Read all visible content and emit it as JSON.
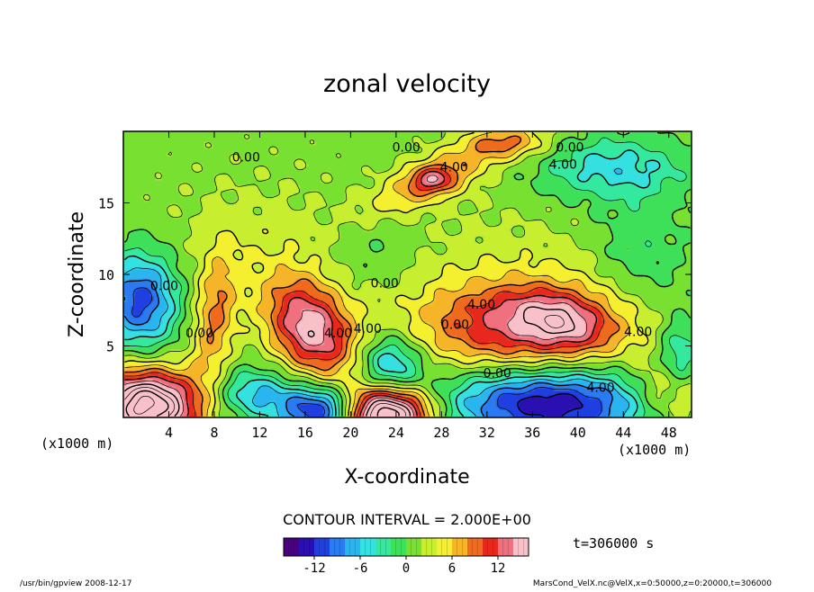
{
  "chart_data": {
    "type": "heatmap",
    "title": "zonal velocity",
    "xlabel": "X-coordinate",
    "ylabel": "Z-coordinate",
    "x_unit_label": "(x1000 m)",
    "x_unit_label_right": "(x1000 m)",
    "x_ticks": [
      4,
      8,
      12,
      16,
      20,
      24,
      28,
      32,
      36,
      40,
      44,
      48
    ],
    "y_ticks": [
      5,
      10,
      15
    ],
    "xlim": [
      0,
      50
    ],
    "ylim": [
      0,
      20
    ],
    "contour_interval_text": "CONTOUR INTERVAL = 2.000E+00",
    "time_text": "t=306000 s",
    "colorbar": {
      "range": [
        -16,
        16
      ],
      "ticks": [
        -12,
        -6,
        0,
        6,
        12
      ],
      "colors": [
        "#4a0082",
        "#2a10b0",
        "#1f3fe0",
        "#2a7af0",
        "#2ab4f0",
        "#34e0e0",
        "#35e8a0",
        "#3ee05a",
        "#78e030",
        "#c8ee30",
        "#f4f030",
        "#f6b428",
        "#f06a1e",
        "#e8281c",
        "#f07080",
        "#f8c0c8"
      ]
    },
    "contour_labels": [
      {
        "text": "0.00",
        "x": 10.8,
        "z": 17.9
      },
      {
        "text": "0.00",
        "x": 24.9,
        "z": 18.6
      },
      {
        "text": "0.00",
        "x": 39.3,
        "z": 18.6
      },
      {
        "text": "4.00",
        "x": 29.1,
        "z": 17.2
      },
      {
        "text": "4.00",
        "x": 38.7,
        "z": 17.4
      },
      {
        "text": "0.00",
        "x": 23.0,
        "z": 9.1
      },
      {
        "text": "4.00",
        "x": 31.5,
        "z": 7.6
      },
      {
        "text": "0.00",
        "x": 29.2,
        "z": 6.2
      },
      {
        "text": "0.00",
        "x": 3.6,
        "z": 8.9
      },
      {
        "text": "0.00",
        "x": 6.7,
        "z": 5.6
      },
      {
        "text": "4.00",
        "x": 18.9,
        "z": 5.6
      },
      {
        "text": "4.00",
        "x": 21.5,
        "z": 5.9
      },
      {
        "text": "0.00",
        "x": 32.9,
        "z": 2.8
      },
      {
        "text": "4.00",
        "x": 45.3,
        "z": 5.7
      },
      {
        "text": "4.00",
        "x": 42.0,
        "z": 1.8
      }
    ],
    "field_features": [
      {
        "x": 16.5,
        "z": 6.2,
        "sx": 3.0,
        "sz": 2.1,
        "rot": -35,
        "amp": 14
      },
      {
        "x": 35.5,
        "z": 6.4,
        "sx": 7.0,
        "sz": 2.3,
        "rot": 0,
        "amp": 12
      },
      {
        "x": 38.5,
        "z": 6.8,
        "sx": 2.8,
        "sz": 1.2,
        "rot": -10,
        "amp": 6
      },
      {
        "x": 27.5,
        "z": 16.8,
        "sx": 4.5,
        "sz": 1.2,
        "rot": 20,
        "amp": 7
      },
      {
        "x": 27.2,
        "z": 16.6,
        "sx": 1.3,
        "sz": 0.6,
        "rot": 0,
        "amp": 6
      },
      {
        "x": 34.0,
        "z": 19.2,
        "sx": 2.5,
        "sz": 0.8,
        "rot": 0,
        "amp": 6
      },
      {
        "x": 8.0,
        "z": 6.9,
        "sx": 1.3,
        "sz": 3.2,
        "rot": -8,
        "amp": 7
      },
      {
        "x": 2.0,
        "z": 0.8,
        "sx": 3.2,
        "sz": 1.8,
        "rot": 0,
        "amp": 22
      },
      {
        "x": 23.0,
        "z": 0.3,
        "sx": 2.8,
        "sz": 1.4,
        "rot": 0,
        "amp": 24
      },
      {
        "x": 48.5,
        "z": 1.8,
        "sx": 2.5,
        "sz": 1.6,
        "rot": 0,
        "amp": 8
      },
      {
        "x": 12.0,
        "z": 12.0,
        "sx": 6.0,
        "sz": 3.5,
        "rot": 0,
        "amp": 2
      },
      {
        "x": 33.0,
        "z": 11.5,
        "sx": 8.0,
        "sz": 3.0,
        "rot": 0,
        "amp": 1.5
      },
      {
        "x": 1.5,
        "z": 8.2,
        "sx": 2.3,
        "sz": 2.3,
        "rot": 0,
        "amp": -12
      },
      {
        "x": 37.5,
        "z": 1.0,
        "sx": 6.5,
        "sz": 1.8,
        "rot": 0,
        "amp": -15
      },
      {
        "x": 17.5,
        "z": 0.5,
        "sx": 2.6,
        "sz": 1.2,
        "rot": 0,
        "amp": -15
      },
      {
        "x": 23.5,
        "z": 3.5,
        "sx": 2.0,
        "sz": 1.6,
        "rot": 0,
        "amp": -9
      },
      {
        "x": 11.5,
        "z": 1.7,
        "sx": 2.4,
        "sz": 1.2,
        "rot": 0,
        "amp": -7
      },
      {
        "x": 43.0,
        "z": 17.4,
        "sx": 4.5,
        "sz": 1.5,
        "rot": 0,
        "amp": -6
      },
      {
        "x": 45.5,
        "z": 11.0,
        "sx": 3.0,
        "sz": 3.5,
        "rot": 0,
        "amp": -3
      },
      {
        "x": 49.0,
        "z": 4.0,
        "sx": 1.4,
        "sz": 2.0,
        "rot": 0,
        "amp": -7
      },
      {
        "x": 22.0,
        "z": 12.0,
        "sx": 3.0,
        "sz": 2.5,
        "rot": 0,
        "amp": -2
      }
    ],
    "field_background": 1.0
  },
  "footer": {
    "left": "/usr/bin/gpview  2008-12-17",
    "right": "MarsCond_VelX.nc@VelX,x=0:50000,z=0:20000,t=306000"
  }
}
